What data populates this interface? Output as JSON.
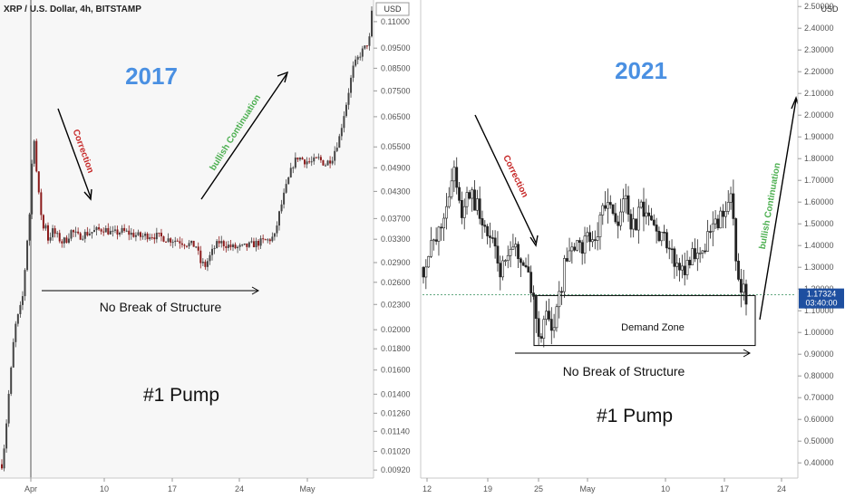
{
  "chart_data": [
    {
      "type": "candlestick",
      "title": "2017",
      "symbol_label": "XRP / U.S. Dollar, 4h, BITSTAMP",
      "currency_label": "USD",
      "y_ticks": [
        "0.11000",
        "0.09500",
        "0.08500",
        "0.07500",
        "0.06500",
        "0.05500",
        "0.04900",
        "0.04300",
        "0.03700",
        "0.03300",
        "0.02900",
        "0.02600",
        "0.02300",
        "0.02000",
        "0.01800",
        "0.01600",
        "0.01400",
        "0.01260",
        "0.01140",
        "0.01020",
        "0.00920"
      ],
      "y_scale": "log",
      "ylim": [
        0.0088,
        0.124
      ],
      "x_ticks": [
        "Apr",
        "10",
        "17",
        "24",
        "May"
      ],
      "price_path": [
        [
          0,
          0.0095
        ],
        [
          1,
          0.0105
        ],
        [
          2,
          0.012
        ],
        [
          3,
          0.014
        ],
        [
          4,
          0.016
        ],
        [
          5,
          0.0185
        ],
        [
          6,
          0.0205
        ],
        [
          7,
          0.0215
        ],
        [
          8,
          0.0225
        ],
        [
          9,
          0.024
        ],
        [
          10,
          0.028
        ],
        [
          11,
          0.033
        ],
        [
          12,
          0.038
        ],
        [
          13,
          0.05
        ],
        [
          14,
          0.058
        ],
        [
          15,
          0.048
        ],
        [
          16,
          0.042
        ],
        [
          17,
          0.038
        ],
        [
          18,
          0.035
        ],
        [
          19,
          0.036
        ],
        [
          20,
          0.033
        ],
        [
          22,
          0.0345
        ],
        [
          24,
          0.0335
        ],
        [
          26,
          0.0325
        ],
        [
          28,
          0.033
        ],
        [
          30,
          0.0345
        ],
        [
          33,
          0.0335
        ],
        [
          36,
          0.034
        ],
        [
          40,
          0.0345
        ],
        [
          44,
          0.035
        ],
        [
          48,
          0.034
        ],
        [
          52,
          0.0345
        ],
        [
          56,
          0.034
        ],
        [
          60,
          0.0335
        ],
        [
          64,
          0.0338
        ],
        [
          68,
          0.0335
        ],
        [
          72,
          0.033
        ],
        [
          76,
          0.0328
        ],
        [
          80,
          0.0322
        ],
        [
          84,
          0.0318
        ],
        [
          86,
          0.029
        ],
        [
          88,
          0.0285
        ],
        [
          90,
          0.03
        ],
        [
          92,
          0.0315
        ],
        [
          94,
          0.0325
        ],
        [
          97,
          0.032
        ],
        [
          100,
          0.0315
        ],
        [
          104,
          0.0315
        ],
        [
          108,
          0.032
        ],
        [
          112,
          0.0325
        ],
        [
          115,
          0.0328
        ],
        [
          118,
          0.0335
        ],
        [
          120,
          0.038
        ],
        [
          122,
          0.042
        ],
        [
          124,
          0.046
        ],
        [
          126,
          0.05
        ],
        [
          128,
          0.052
        ],
        [
          131,
          0.051
        ],
        [
          134,
          0.0505
        ],
        [
          137,
          0.0515
        ],
        [
          140,
          0.05
        ],
        [
          143,
          0.052
        ],
        [
          146,
          0.058
        ],
        [
          149,
          0.07
        ],
        [
          152,
          0.085
        ],
        [
          155,
          0.092
        ],
        [
          157,
          0.095
        ],
        [
          159,
          0.1
        ],
        [
          160,
          0.115
        ]
      ],
      "annotations": {
        "correction": "Correction",
        "bullish": "bullish Continuation",
        "no_break": "No Break of Structure",
        "pump": "#1 Pump"
      }
    },
    {
      "type": "candlestick",
      "title": "2021",
      "currency_label": "USD",
      "y_ticks": [
        "2.50000",
        "2.40000",
        "2.30000",
        "2.20000",
        "2.10000",
        "2.00000",
        "1.90000",
        "1.80000",
        "1.70000",
        "1.60000",
        "1.50000",
        "1.40000",
        "1.30000",
        "1.20000",
        "1.10000",
        "1.00000",
        "0.90000",
        "0.80000",
        "0.70000",
        "0.60000",
        "0.50000",
        "0.40000"
      ],
      "y_scale": "linear",
      "ylim": [
        0.33,
        2.53
      ],
      "x_ticks": [
        "12",
        "19",
        "25",
        "May",
        "10",
        "17",
        "24"
      ],
      "last_price": "1.17324",
      "countdown": "03:40:00",
      "price_path": [
        [
          0,
          1.3
        ],
        [
          3,
          1.38
        ],
        [
          6,
          1.45
        ],
        [
          9,
          1.6
        ],
        [
          12,
          1.75
        ],
        [
          15,
          1.55
        ],
        [
          18,
          1.65
        ],
        [
          21,
          1.58
        ],
        [
          24,
          1.48
        ],
        [
          27,
          1.4
        ],
        [
          30,
          1.28
        ],
        [
          33,
          1.32
        ],
        [
          36,
          1.4
        ],
        [
          39,
          1.3
        ],
        [
          42,
          1.22
        ],
        [
          44,
          1.05
        ],
        [
          46,
          1.0
        ],
        [
          48,
          1.1
        ],
        [
          50,
          1.02
        ],
        [
          52,
          1.08
        ],
        [
          55,
          1.3
        ],
        [
          58,
          1.42
        ],
        [
          61,
          1.38
        ],
        [
          64,
          1.45
        ],
        [
          67,
          1.4
        ],
        [
          70,
          1.55
        ],
        [
          73,
          1.58
        ],
        [
          76,
          1.52
        ],
        [
          79,
          1.6
        ],
        [
          82,
          1.48
        ],
        [
          85,
          1.56
        ],
        [
          88,
          1.52
        ],
        [
          91,
          1.48
        ],
        [
          94,
          1.42
        ],
        [
          97,
          1.35
        ],
        [
          100,
          1.28
        ],
        [
          103,
          1.32
        ],
        [
          106,
          1.38
        ],
        [
          109,
          1.4
        ],
        [
          112,
          1.45
        ],
        [
          115,
          1.5
        ],
        [
          118,
          1.55
        ],
        [
          120,
          1.62
        ],
        [
          122,
          1.35
        ],
        [
          124,
          1.2
        ],
        [
          126,
          1.17
        ]
      ],
      "demand_zone_range": [
        0.94,
        1.17
      ],
      "annotations": {
        "correction": "Correction",
        "bullish": "bullish Continuation",
        "no_break": "No Break of Structure",
        "pump": "#1 Pump",
        "demand_zone": "Demand Zone"
      }
    }
  ],
  "colors": {
    "title_blue": "#4a90e2",
    "correction_red": "#c62828",
    "bullish_green": "#4caf50",
    "candle_up": "#444444",
    "candle_down": "#8b1a1a",
    "last_price_bg": "#1e4fa0",
    "axis_text": "#555555",
    "panel_bg_left": "#f7f7f7"
  }
}
